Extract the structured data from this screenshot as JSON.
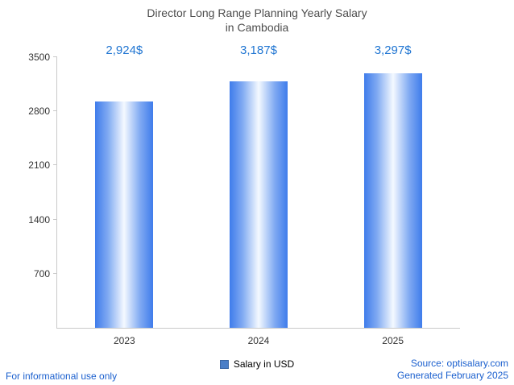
{
  "title": {
    "line1": "Director Long Range Planning Yearly Salary",
    "line2": "in Cambodia"
  },
  "chart_data": {
    "type": "bar",
    "title": "Director Long Range Planning Yearly Salary in Cambodia",
    "categories": [
      "2023",
      "2024",
      "2025"
    ],
    "values": [
      2924,
      3187,
      3297
    ],
    "value_labels": [
      "2,924$",
      "3,187$",
      "3,297$"
    ],
    "xlabel": "",
    "ylabel": "",
    "ylim": [
      0,
      3500
    ],
    "yticks": [
      700,
      1400,
      2100,
      2800,
      3500
    ],
    "grid": false,
    "legend_entries": [
      "Salary in USD"
    ],
    "legend_position": "bottom-center",
    "bar_gradient": {
      "edge": "#3f7ceb",
      "mid": "#7fa9f2",
      "center": "#f4f9ff"
    }
  },
  "legend": {
    "label": "Salary in USD"
  },
  "footer": {
    "disclaimer": "For informational use only",
    "source": "Source: optisalary.com",
    "generated": "Generated February 2025"
  },
  "colors": {
    "value_label": "#2176d2",
    "link": "#1a5fce",
    "axis": "#c9c9c9",
    "text": "#333333",
    "title": "#4d4d4d",
    "legend_swatch": "#4a7ec7",
    "legend_swatch_border": "#3b67a5"
  }
}
